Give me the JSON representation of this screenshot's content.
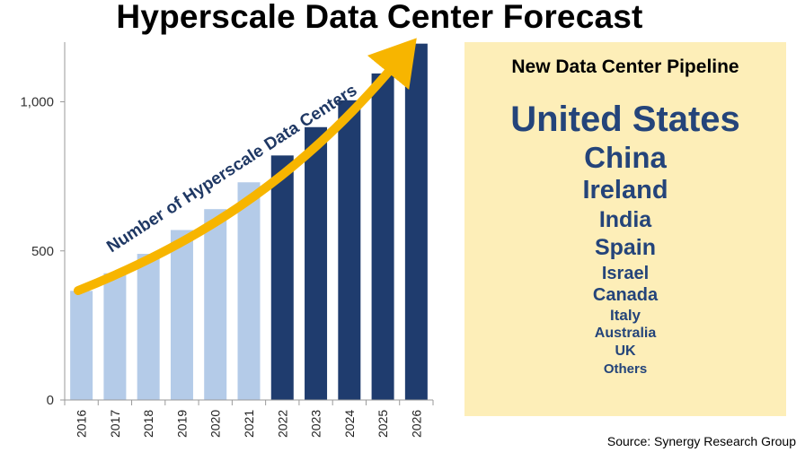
{
  "title": "Hyperscale Data Center Forecast",
  "colors": {
    "light_bar": "#b4cbe8",
    "dark_bar": "#1f3c6e",
    "arrow": "#f7b500",
    "panel_bg": "#fdeeb8",
    "panel_text": "#24447a"
  },
  "chart_data": {
    "type": "bar",
    "title": "Hyperscale Data Center Forecast",
    "categories": [
      "2016",
      "2017",
      "2018",
      "2019",
      "2020",
      "2021",
      "2022",
      "2023",
      "2024",
      "2025",
      "2026"
    ],
    "values": [
      366,
      425,
      490,
      570,
      640,
      730,
      820,
      915,
      1005,
      1095,
      1195
    ],
    "forecast_start_index": 6,
    "ylim": [
      0,
      1200
    ],
    "yticks": [
      0,
      500,
      1000
    ],
    "ytick_labels": [
      "0",
      "500",
      "1,000"
    ],
    "grid": false,
    "annotation": "Number of Hyperscale Data Centers"
  },
  "pipeline": {
    "title": "New Data Center Pipeline",
    "countries": [
      {
        "name": "United States",
        "size": 40
      },
      {
        "name": "China",
        "size": 33
      },
      {
        "name": "Ireland",
        "size": 29
      },
      {
        "name": "India",
        "size": 25
      },
      {
        "name": "Spain",
        "size": 25
      },
      {
        "name": "Israel",
        "size": 20
      },
      {
        "name": "Canada",
        "size": 20
      },
      {
        "name": "Italy",
        "size": 17
      },
      {
        "name": "Australia",
        "size": 16
      },
      {
        "name": "UK",
        "size": 16
      },
      {
        "name": "Others",
        "size": 15
      }
    ]
  },
  "source": "Source: Synergy Research Group"
}
